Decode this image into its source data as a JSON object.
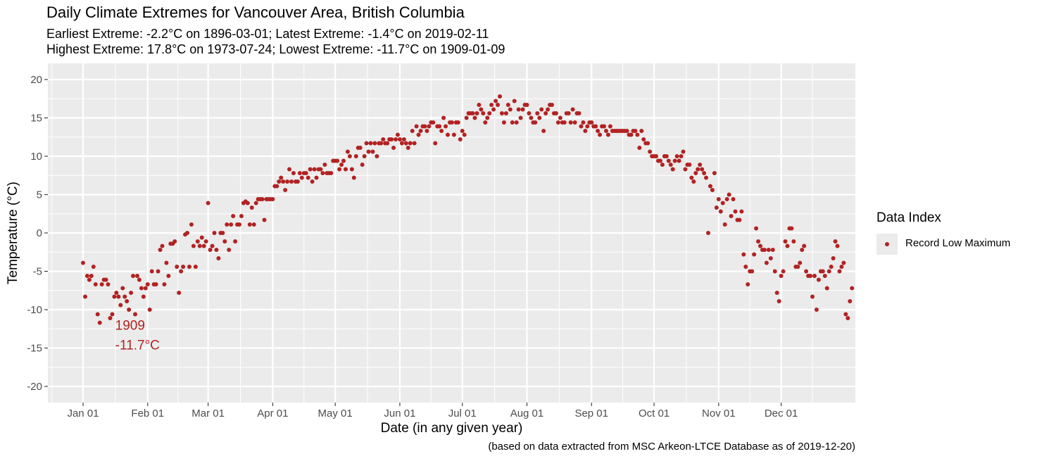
{
  "title": "Daily Climate Extremes for Vancouver Area, British Columbia",
  "subtitle_line1": "Earliest Extreme: -2.2°C on 1896-03-01; Latest Extreme: -1.4°C on 2019-02-11",
  "subtitle_line2": "Highest Extreme: 17.8°C on 1973-07-24; Lowest Extreme: -11.7°C on 1909-01-09",
  "caption": "(based on data extracted from MSC Arkeon-LTCE Database as of 2019-12-20)",
  "legend": {
    "title": "Data Index",
    "label": "Record Low Maximum"
  },
  "colors": {
    "points": "#b22222",
    "panel": "#ebebeb",
    "grid": "#ffffff"
  },
  "chart_data": {
    "type": "scatter",
    "xlabel": "Date (in any given year)",
    "ylabel": "Temperature (°C)",
    "ylim": [
      -22,
      20
    ],
    "yticks": [
      20,
      15,
      10,
      5,
      0,
      -5,
      -10,
      -15,
      -20
    ],
    "xticks": [
      {
        "label": "Jan 01",
        "day": 1
      },
      {
        "label": "Feb 01",
        "day": 32
      },
      {
        "label": "Mar 01",
        "day": 61
      },
      {
        "label": "Apr 01",
        "day": 92
      },
      {
        "label": "May 01",
        "day": 122
      },
      {
        "label": "Jun 01",
        "day": 153
      },
      {
        "label": "Jul 01",
        "day": 183
      },
      {
        "label": "Aug 01",
        "day": 214
      },
      {
        "label": "Sep 01",
        "day": 245
      },
      {
        "label": "Oct 01",
        "day": 275
      },
      {
        "label": "Nov 01",
        "day": 306
      },
      {
        "label": "Dec 01",
        "day": 336
      }
    ],
    "annotation": {
      "year": "1909",
      "value": "-11.7°C",
      "day": 9,
      "temp": -11.7
    },
    "series": [
      {
        "name": "Record Low Maximum",
        "start_day": 1,
        "values": [
          -3.9,
          -8.3,
          -5.6,
          -6.1,
          -5.6,
          -4.4,
          -6.7,
          -10.6,
          -11.7,
          -6.7,
          -6.1,
          -6.1,
          -6.7,
          -11.1,
          -10.6,
          -8.3,
          -7.8,
          -8.3,
          -9.4,
          -7.2,
          -8.3,
          -8.9,
          -10.0,
          -7.8,
          -5.6,
          -10.6,
          -5.6,
          -6.1,
          -7.2,
          -8.3,
          -7.2,
          -6.7,
          -10.0,
          -5.0,
          -6.7,
          -6.7,
          -5.0,
          -2.2,
          -1.7,
          -6.7,
          -3.9,
          -5.6,
          -1.4,
          -1.4,
          -1.1,
          -4.4,
          -7.8,
          -5.0,
          -4.4,
          -0.2,
          0.0,
          -4.4,
          1.1,
          -1.7,
          -4.4,
          -1.1,
          -1.7,
          -0.6,
          -1.7,
          -1.1,
          3.9,
          -2.2,
          -1.7,
          0.0,
          -2.2,
          -3.3,
          0.0,
          0.0,
          -1.1,
          1.1,
          -2.2,
          1.1,
          2.2,
          -1.1,
          1.1,
          1.1,
          2.2,
          3.9,
          4.1,
          3.9,
          1.1,
          3.3,
          1.1,
          3.9,
          4.4,
          4.4,
          4.4,
          1.7,
          4.4,
          4.4,
          4.4,
          4.4,
          6.1,
          6.1,
          6.7,
          7.2,
          6.7,
          5.6,
          6.7,
          8.3,
          6.7,
          7.8,
          6.7,
          6.7,
          7.8,
          7.2,
          7.8,
          7.8,
          7.2,
          8.3,
          6.7,
          8.3,
          7.2,
          8.3,
          8.3,
          7.8,
          8.9,
          7.8,
          7.8,
          7.8,
          9.4,
          9.4,
          9.4,
          8.3,
          8.9,
          9.4,
          8.3,
          10.6,
          10.0,
          8.3,
          7.2,
          10.0,
          11.1,
          11.1,
          8.9,
          10.0,
          11.7,
          10.6,
          11.7,
          10.6,
          11.7,
          10.0,
          11.7,
          11.7,
          12.2,
          11.7,
          11.7,
          12.2,
          12.2,
          11.1,
          12.2,
          12.8,
          12.2,
          11.7,
          12.2,
          11.7,
          11.1,
          11.7,
          13.3,
          11.7,
          13.9,
          12.8,
          13.3,
          13.9,
          13.9,
          13.3,
          13.9,
          14.4,
          14.4,
          11.7,
          13.9,
          13.9,
          13.3,
          15.0,
          13.9,
          12.8,
          14.4,
          14.4,
          12.8,
          14.4,
          14.4,
          12.2,
          13.3,
          12.8,
          15.0,
          15.6,
          15.6,
          15.6,
          15.0,
          15.6,
          16.7,
          16.1,
          15.6,
          14.4,
          15.0,
          15.6,
          16.7,
          16.1,
          17.2,
          16.7,
          17.8,
          15.6,
          14.4,
          15.6,
          16.7,
          16.1,
          14.4,
          17.2,
          14.4,
          16.1,
          15.0,
          16.1,
          16.7,
          16.7,
          15.6,
          15.0,
          14.4,
          14.4,
          15.6,
          15.0,
          16.1,
          13.3,
          15.6,
          16.1,
          16.7,
          16.7,
          15.6,
          15.6,
          14.4,
          15.0,
          14.4,
          14.4,
          15.6,
          15.6,
          14.4,
          16.1,
          14.4,
          15.6,
          15.6,
          13.9,
          14.4,
          13.3,
          13.9,
          14.4,
          14.4,
          13.9,
          13.9,
          13.3,
          12.8,
          13.9,
          13.9,
          13.3,
          12.8,
          13.9,
          13.3,
          13.3,
          13.3,
          13.3,
          13.3,
          13.3,
          13.3,
          13.3,
          12.8,
          12.8,
          13.3,
          13.3,
          12.8,
          11.1,
          13.3,
          12.2,
          11.7,
          11.7,
          10.6,
          10.0,
          10.0,
          10.0,
          9.4,
          9.4,
          8.9,
          10.0,
          10.0,
          9.4,
          8.9,
          8.3,
          9.4,
          10.0,
          9.4,
          10.0,
          10.6,
          8.3,
          8.9,
          8.9,
          7.2,
          6.7,
          7.8,
          8.3,
          8.9,
          8.3,
          7.8,
          7.2,
          0.0,
          6.1,
          5.6,
          7.8,
          3.3,
          4.4,
          2.8,
          3.9,
          1.1,
          4.4,
          5.0,
          2.2,
          4.4,
          2.8,
          1.7,
          1.7,
          2.8,
          -2.8,
          -4.4,
          -6.7,
          -5.0,
          -5.0,
          -2.8,
          0.6,
          -1.1,
          -1.7,
          -2.2,
          -2.2,
          -3.9,
          -2.2,
          -3.3,
          -2.2,
          -5.0,
          -7.8,
          -8.9,
          -5.6,
          -5.0,
          -1.1,
          -1.7,
          0.6,
          0.6,
          -1.1,
          -4.4,
          -4.4,
          -3.9,
          -2.2,
          -1.7,
          -5.0,
          -5.6,
          -5.6,
          -8.3,
          -5.6,
          -10.0,
          -6.1,
          -5.0,
          -5.0,
          -5.6,
          -7.2,
          -5.0,
          -4.4,
          -3.3,
          -1.1,
          -1.7,
          -5.0,
          -4.4,
          -3.9,
          -10.6,
          -11.1,
          -8.9,
          -7.2
        ]
      }
    ]
  }
}
